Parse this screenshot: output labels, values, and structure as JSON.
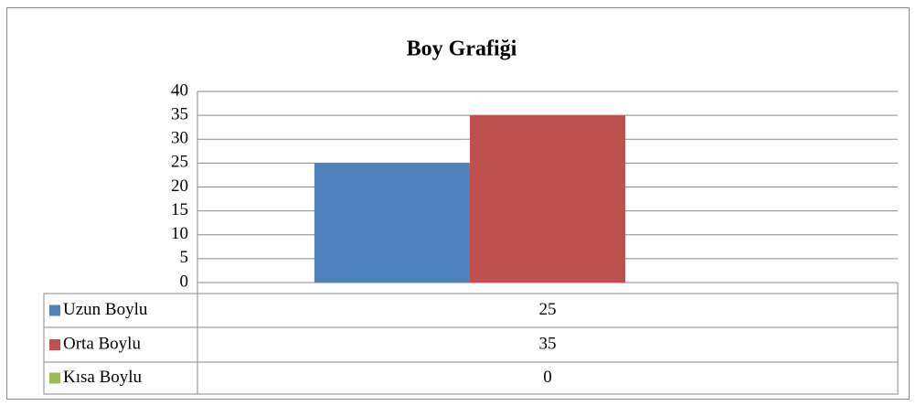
{
  "chart_data": {
    "type": "bar",
    "title": "Boy Grafiği",
    "categories": [
      null
    ],
    "series": [
      {
        "name": "Uzun Boylu",
        "color": "#4f81bd",
        "values": [
          25
        ]
      },
      {
        "name": "Orta Boylu",
        "color": "#c0504d",
        "values": [
          35
        ]
      },
      {
        "name": "Kısa Boylu",
        "color": "#9bbb59",
        "values": [
          0
        ]
      }
    ],
    "ylim": [
      0,
      40
    ],
    "yticks": [
      0,
      5,
      10,
      15,
      20,
      25,
      30,
      35,
      40
    ],
    "grid": true
  }
}
